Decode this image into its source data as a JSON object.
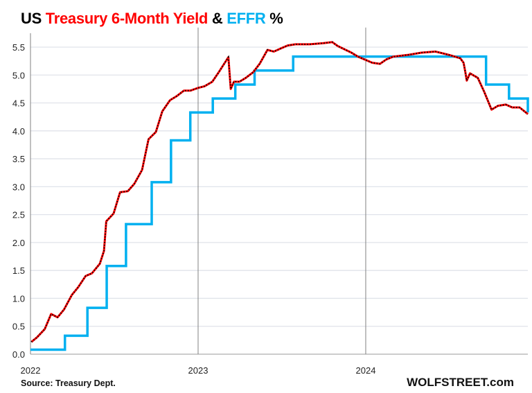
{
  "title": {
    "part1": "US ",
    "part2": "Treasury 6-Month Yield",
    "part3": " & ",
    "part4": "EFFR",
    "part5": " %"
  },
  "colors": {
    "treasury": "#ff0000",
    "treasury_dots": "#000000",
    "effr": "#00b0f0",
    "grid": "#e0e3ea",
    "year_lines": "#808080"
  },
  "source": "Source: Treasury Dept.",
  "brand": "WOLFSTREET.com",
  "chart_data": {
    "type": "line",
    "title": "US Treasury 6-Month Yield & EFFR %",
    "xlabel": "",
    "ylabel": "",
    "xlim": [
      "2022-01-01",
      "2024-12-19"
    ],
    "ylim": [
      0,
      5.75
    ],
    "yticks": [
      "0.0",
      "0.5",
      "1.0",
      "1.5",
      "2.0",
      "2.5",
      "3.0",
      "3.5",
      "4.0",
      "4.5",
      "5.0",
      "5.5"
    ],
    "xticks": [
      {
        "date": "2022-01-01",
        "label": "2022"
      },
      {
        "date": "2023-01-01",
        "label": "2023"
      },
      {
        "date": "2024-01-01",
        "label": "2024"
      }
    ],
    "grid": "horizontal, plus vertical lines at year boundaries",
    "series": [
      {
        "name": "Treasury 6-Month Yield",
        "style": "red line with black dots",
        "points": [
          [
            "2022-01-03",
            0.22
          ],
          [
            "2022-01-15",
            0.3
          ],
          [
            "2022-02-01",
            0.45
          ],
          [
            "2022-02-15",
            0.72
          ],
          [
            "2022-03-01",
            0.66
          ],
          [
            "2022-03-15",
            0.8
          ],
          [
            "2022-04-01",
            1.06
          ],
          [
            "2022-04-15",
            1.2
          ],
          [
            "2022-05-01",
            1.4
          ],
          [
            "2022-05-15",
            1.45
          ],
          [
            "2022-06-01",
            1.62
          ],
          [
            "2022-06-10",
            1.85
          ],
          [
            "2022-06-15",
            2.38
          ],
          [
            "2022-07-01",
            2.52
          ],
          [
            "2022-07-15",
            2.9
          ],
          [
            "2022-08-01",
            2.92
          ],
          [
            "2022-08-15",
            3.05
          ],
          [
            "2022-09-01",
            3.3
          ],
          [
            "2022-09-15",
            3.85
          ],
          [
            "2022-10-01",
            3.98
          ],
          [
            "2022-10-15",
            4.35
          ],
          [
            "2022-11-01",
            4.55
          ],
          [
            "2022-11-15",
            4.62
          ],
          [
            "2022-12-01",
            4.72
          ],
          [
            "2022-12-15",
            4.72
          ],
          [
            "2023-01-01",
            4.77
          ],
          [
            "2023-01-15",
            4.8
          ],
          [
            "2023-02-01",
            4.88
          ],
          [
            "2023-02-15",
            5.05
          ],
          [
            "2023-03-08",
            5.32
          ],
          [
            "2023-03-13",
            4.75
          ],
          [
            "2023-03-20",
            4.88
          ],
          [
            "2023-04-01",
            4.88
          ],
          [
            "2023-04-15",
            4.95
          ],
          [
            "2023-05-01",
            5.05
          ],
          [
            "2023-05-15",
            5.2
          ],
          [
            "2023-06-01",
            5.45
          ],
          [
            "2023-06-15",
            5.42
          ],
          [
            "2023-07-01",
            5.48
          ],
          [
            "2023-07-15",
            5.53
          ],
          [
            "2023-08-01",
            5.55
          ],
          [
            "2023-09-01",
            5.55
          ],
          [
            "2023-10-01",
            5.57
          ],
          [
            "2023-10-20",
            5.59
          ],
          [
            "2023-11-01",
            5.52
          ],
          [
            "2023-12-01",
            5.4
          ],
          [
            "2023-12-15",
            5.33
          ],
          [
            "2024-01-01",
            5.27
          ],
          [
            "2024-01-15",
            5.22
          ],
          [
            "2024-02-01",
            5.2
          ],
          [
            "2024-02-15",
            5.28
          ],
          [
            "2024-03-01",
            5.33
          ],
          [
            "2024-04-01",
            5.36
          ],
          [
            "2024-05-01",
            5.4
          ],
          [
            "2024-06-01",
            5.42
          ],
          [
            "2024-07-01",
            5.36
          ],
          [
            "2024-07-25",
            5.3
          ],
          [
            "2024-08-01",
            5.22
          ],
          [
            "2024-08-05",
            5.05
          ],
          [
            "2024-08-08",
            4.9
          ],
          [
            "2024-08-15",
            5.03
          ],
          [
            "2024-09-01",
            4.95
          ],
          [
            "2024-09-15",
            4.7
          ],
          [
            "2024-10-01",
            4.38
          ],
          [
            "2024-10-15",
            4.45
          ],
          [
            "2024-11-01",
            4.47
          ],
          [
            "2024-11-15",
            4.42
          ],
          [
            "2024-12-01",
            4.42
          ],
          [
            "2024-12-19",
            4.3
          ]
        ]
      },
      {
        "name": "EFFR",
        "style": "blue step line",
        "steps": [
          [
            "2022-01-01",
            0.08
          ],
          [
            "2022-03-17",
            0.33
          ],
          [
            "2022-05-05",
            0.83
          ],
          [
            "2022-06-16",
            1.58
          ],
          [
            "2022-07-28",
            2.33
          ],
          [
            "2022-09-22",
            3.08
          ],
          [
            "2022-11-03",
            3.83
          ],
          [
            "2022-12-15",
            4.33
          ],
          [
            "2023-02-02",
            4.58
          ],
          [
            "2023-03-23",
            4.83
          ],
          [
            "2023-05-04",
            5.08
          ],
          [
            "2023-07-27",
            5.33
          ],
          [
            "2024-09-19",
            4.83
          ],
          [
            "2024-11-08",
            4.58
          ],
          [
            "2024-12-19",
            4.33
          ]
        ]
      }
    ]
  }
}
